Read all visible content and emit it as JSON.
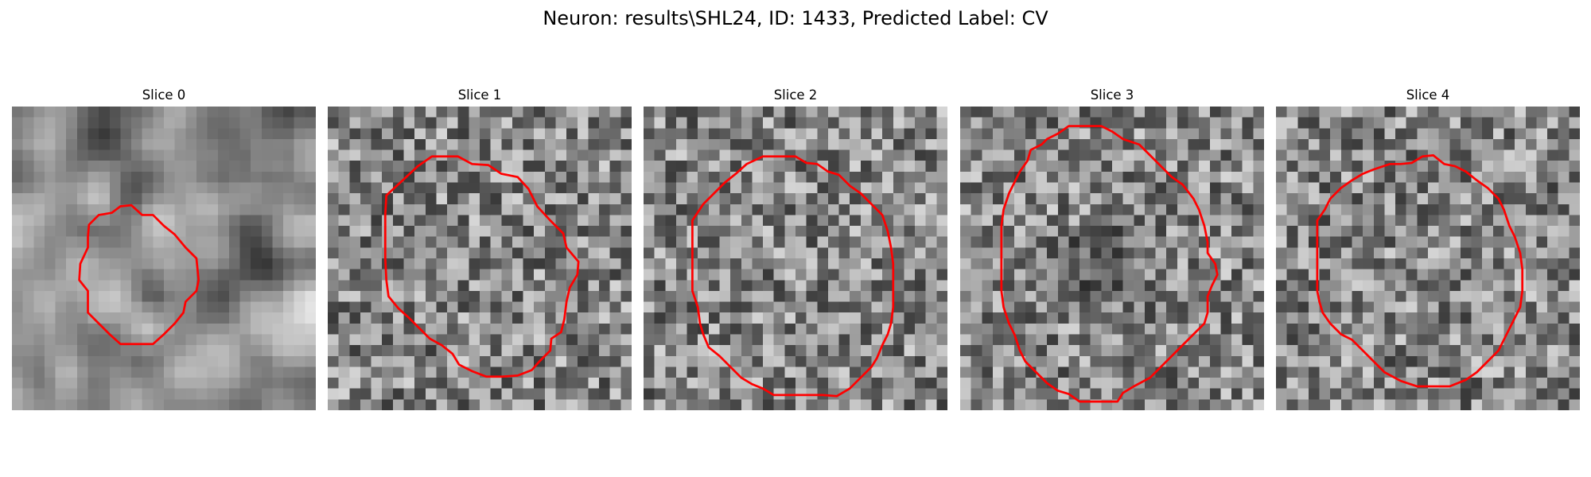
{
  "figure": {
    "title": "Neuron: results\\SHL24, ID: 1433, Predicted Label: CV"
  },
  "colors": {
    "contour": "#ff0000",
    "background": "#ffffff"
  },
  "grid_cells": 28,
  "panels": [
    {
      "title": "Slice 0",
      "seed": 11,
      "mode": "smooth",
      "contour": [
        [
          7.1,
          10.9
        ],
        [
          8.0,
          10.0
        ],
        [
          9.2,
          9.8
        ],
        [
          10.0,
          9.2
        ],
        [
          11.0,
          9.1
        ],
        [
          12.0,
          10.0
        ],
        [
          13.0,
          10.0
        ],
        [
          14.0,
          11.0
        ],
        [
          15.0,
          11.8
        ],
        [
          16.0,
          13.0
        ],
        [
          17.0,
          14.0
        ],
        [
          17.2,
          16.0
        ],
        [
          17.0,
          17.0
        ],
        [
          16.0,
          18.0
        ],
        [
          15.8,
          19.0
        ],
        [
          15.0,
          20.0
        ],
        [
          14.0,
          21.0
        ],
        [
          13.0,
          21.9
        ],
        [
          10.0,
          21.9
        ],
        [
          9.0,
          21.0
        ],
        [
          8.0,
          20.0
        ],
        [
          7.0,
          19.0
        ],
        [
          7.0,
          17.0
        ],
        [
          6.2,
          16.0
        ],
        [
          6.3,
          14.5
        ],
        [
          7.0,
          13.0
        ],
        [
          7.0,
          12.0
        ]
      ]
    },
    {
      "title": "Slice 1",
      "seed": 23,
      "mode": "noise",
      "contour": [
        [
          5.4,
          8.2
        ],
        [
          6.8,
          6.9
        ],
        [
          8.3,
          5.5
        ],
        [
          9.6,
          4.6
        ],
        [
          10.8,
          4.6
        ],
        [
          12.0,
          4.6
        ],
        [
          13.3,
          5.3
        ],
        [
          14.8,
          5.4
        ],
        [
          16.0,
          6.2
        ],
        [
          17.5,
          6.5
        ],
        [
          18.5,
          7.6
        ],
        [
          19.3,
          9.2
        ],
        [
          20.5,
          10.5
        ],
        [
          21.7,
          11.7
        ],
        [
          22.0,
          13.0
        ],
        [
          23.1,
          14.3
        ],
        [
          23.0,
          15.5
        ],
        [
          22.3,
          16.7
        ],
        [
          22.0,
          18.0
        ],
        [
          21.8,
          19.6
        ],
        [
          21.5,
          20.8
        ],
        [
          20.6,
          21.4
        ],
        [
          20.5,
          22.5
        ],
        [
          19.5,
          23.5
        ],
        [
          18.8,
          24.3
        ],
        [
          17.5,
          24.8
        ],
        [
          16.1,
          24.9
        ],
        [
          14.6,
          24.9
        ],
        [
          13.3,
          24.4
        ],
        [
          12.1,
          23.8
        ],
        [
          11.5,
          22.8
        ],
        [
          10.5,
          22.0
        ],
        [
          9.4,
          21.4
        ],
        [
          8.5,
          20.5
        ],
        [
          7.5,
          19.5
        ],
        [
          6.5,
          18.6
        ],
        [
          5.6,
          17.5
        ],
        [
          5.4,
          16.0
        ],
        [
          5.3,
          14.0
        ],
        [
          5.3,
          12.0
        ],
        [
          5.3,
          10.0
        ]
      ]
    },
    {
      "title": "Slice 2",
      "seed": 37,
      "mode": "noise",
      "contour": [
        [
          4.5,
          10.5
        ],
        [
          5.5,
          9.0
        ],
        [
          6.5,
          8.0
        ],
        [
          7.5,
          7.0
        ],
        [
          8.5,
          6.2
        ],
        [
          9.5,
          5.3
        ],
        [
          11.0,
          4.6
        ],
        [
          12.5,
          4.6
        ],
        [
          14.0,
          4.6
        ],
        [
          15.0,
          5.2
        ],
        [
          16.0,
          5.3
        ],
        [
          17.0,
          6.0
        ],
        [
          18.0,
          6.3
        ],
        [
          19.0,
          7.3
        ],
        [
          20.0,
          8.0
        ],
        [
          21.0,
          9.0
        ],
        [
          22.0,
          10.0
        ],
        [
          22.5,
          11.5
        ],
        [
          22.8,
          13.0
        ],
        [
          23.0,
          14.5
        ],
        [
          23.0,
          16.0
        ],
        [
          23.0,
          18.5
        ],
        [
          22.8,
          20.0
        ],
        [
          22.5,
          21.0
        ],
        [
          22.0,
          22.0
        ],
        [
          21.5,
          23.2
        ],
        [
          21.0,
          24.0
        ],
        [
          20.0,
          25.0
        ],
        [
          19.0,
          26.0
        ],
        [
          17.8,
          26.7
        ],
        [
          16.5,
          26.6
        ],
        [
          15.0,
          26.6
        ],
        [
          13.5,
          26.6
        ],
        [
          12.0,
          26.6
        ],
        [
          11.0,
          26.0
        ],
        [
          10.0,
          25.6
        ],
        [
          9.0,
          25.0
        ],
        [
          8.0,
          24.0
        ],
        [
          7.0,
          23.0
        ],
        [
          6.0,
          22.2
        ],
        [
          5.5,
          21.0
        ],
        [
          5.2,
          20.0
        ],
        [
          5.0,
          18.5
        ],
        [
          4.5,
          17.0
        ],
        [
          4.5,
          15.0
        ],
        [
          4.5,
          13.0
        ],
        [
          4.5,
          11.5
        ]
      ]
    },
    {
      "title": "Slice 3",
      "seed": 53,
      "mode": "blob",
      "contour": [
        [
          4.5,
          8.0
        ],
        [
          5.0,
          7.0
        ],
        [
          5.5,
          6.0
        ],
        [
          6.2,
          5.0
        ],
        [
          6.5,
          4.0
        ],
        [
          7.5,
          3.5
        ],
        [
          8.0,
          3.0
        ],
        [
          9.0,
          2.5
        ],
        [
          10.0,
          1.8
        ],
        [
          11.0,
          1.8
        ],
        [
          12.0,
          1.8
        ],
        [
          13.0,
          1.8
        ],
        [
          14.0,
          2.3
        ],
        [
          15.0,
          3.0
        ],
        [
          16.5,
          3.5
        ],
        [
          17.5,
          4.5
        ],
        [
          18.5,
          5.5
        ],
        [
          19.5,
          6.5
        ],
        [
          20.5,
          7.2
        ],
        [
          21.5,
          8.5
        ],
        [
          22.0,
          9.5
        ],
        [
          22.5,
          11.0
        ],
        [
          22.8,
          12.5
        ],
        [
          22.8,
          13.5
        ],
        [
          23.5,
          14.5
        ],
        [
          23.7,
          15.5
        ],
        [
          23.2,
          16.5
        ],
        [
          22.8,
          17.5
        ],
        [
          22.8,
          19.0
        ],
        [
          22.5,
          20.0
        ],
        [
          21.5,
          21.0
        ],
        [
          20.5,
          22.0
        ],
        [
          19.5,
          23.0
        ],
        [
          18.5,
          24.0
        ],
        [
          17.5,
          25.0
        ],
        [
          16.0,
          25.8
        ],
        [
          15.0,
          26.4
        ],
        [
          14.5,
          27.2
        ],
        [
          13.5,
          27.2
        ],
        [
          12.0,
          27.2
        ],
        [
          11.0,
          27.2
        ],
        [
          10.0,
          26.5
        ],
        [
          9.0,
          26.2
        ],
        [
          8.0,
          25.5
        ],
        [
          7.0,
          24.5
        ],
        [
          6.0,
          23.5
        ],
        [
          5.5,
          22.5
        ],
        [
          5.0,
          21.0
        ],
        [
          4.5,
          20.0
        ],
        [
          4.0,
          18.5
        ],
        [
          3.8,
          17.0
        ],
        [
          3.8,
          15.0
        ],
        [
          3.8,
          13.0
        ],
        [
          3.8,
          11.0
        ],
        [
          4.0,
          9.5
        ]
      ]
    },
    {
      "title": "Slice 4",
      "seed": 71,
      "mode": "noise",
      "contour": [
        [
          3.8,
          10.5
        ],
        [
          4.5,
          9.5
        ],
        [
          5.0,
          8.5
        ],
        [
          6.0,
          7.5
        ],
        [
          7.0,
          6.8
        ],
        [
          8.0,
          6.2
        ],
        [
          9.0,
          5.8
        ],
        [
          10.5,
          5.3
        ],
        [
          11.5,
          5.3
        ],
        [
          12.5,
          5.2
        ],
        [
          13.5,
          4.6
        ],
        [
          14.5,
          4.5
        ],
        [
          15.5,
          5.3
        ],
        [
          16.5,
          5.5
        ],
        [
          17.5,
          6.0
        ],
        [
          18.5,
          6.8
        ],
        [
          19.5,
          7.5
        ],
        [
          20.5,
          8.5
        ],
        [
          21.0,
          9.5
        ],
        [
          21.5,
          11.0
        ],
        [
          22.0,
          12.0
        ],
        [
          22.5,
          13.5
        ],
        [
          22.7,
          15.0
        ],
        [
          22.7,
          17.0
        ],
        [
          22.5,
          18.5
        ],
        [
          22.0,
          19.5
        ],
        [
          21.5,
          20.5
        ],
        [
          21.0,
          21.5
        ],
        [
          20.5,
          22.5
        ],
        [
          19.5,
          23.5
        ],
        [
          18.5,
          24.5
        ],
        [
          17.5,
          25.2
        ],
        [
          16.0,
          25.8
        ],
        [
          14.5,
          25.8
        ],
        [
          13.0,
          25.8
        ],
        [
          11.5,
          25.3
        ],
        [
          10.0,
          24.5
        ],
        [
          9.0,
          23.5
        ],
        [
          8.0,
          22.5
        ],
        [
          7.0,
          21.5
        ],
        [
          6.0,
          21.0
        ],
        [
          5.0,
          20.0
        ],
        [
          4.3,
          19.0
        ],
        [
          4.0,
          18.0
        ],
        [
          3.8,
          17.0
        ],
        [
          3.8,
          15.0
        ],
        [
          3.8,
          13.0
        ],
        [
          3.8,
          11.5
        ]
      ]
    }
  ]
}
